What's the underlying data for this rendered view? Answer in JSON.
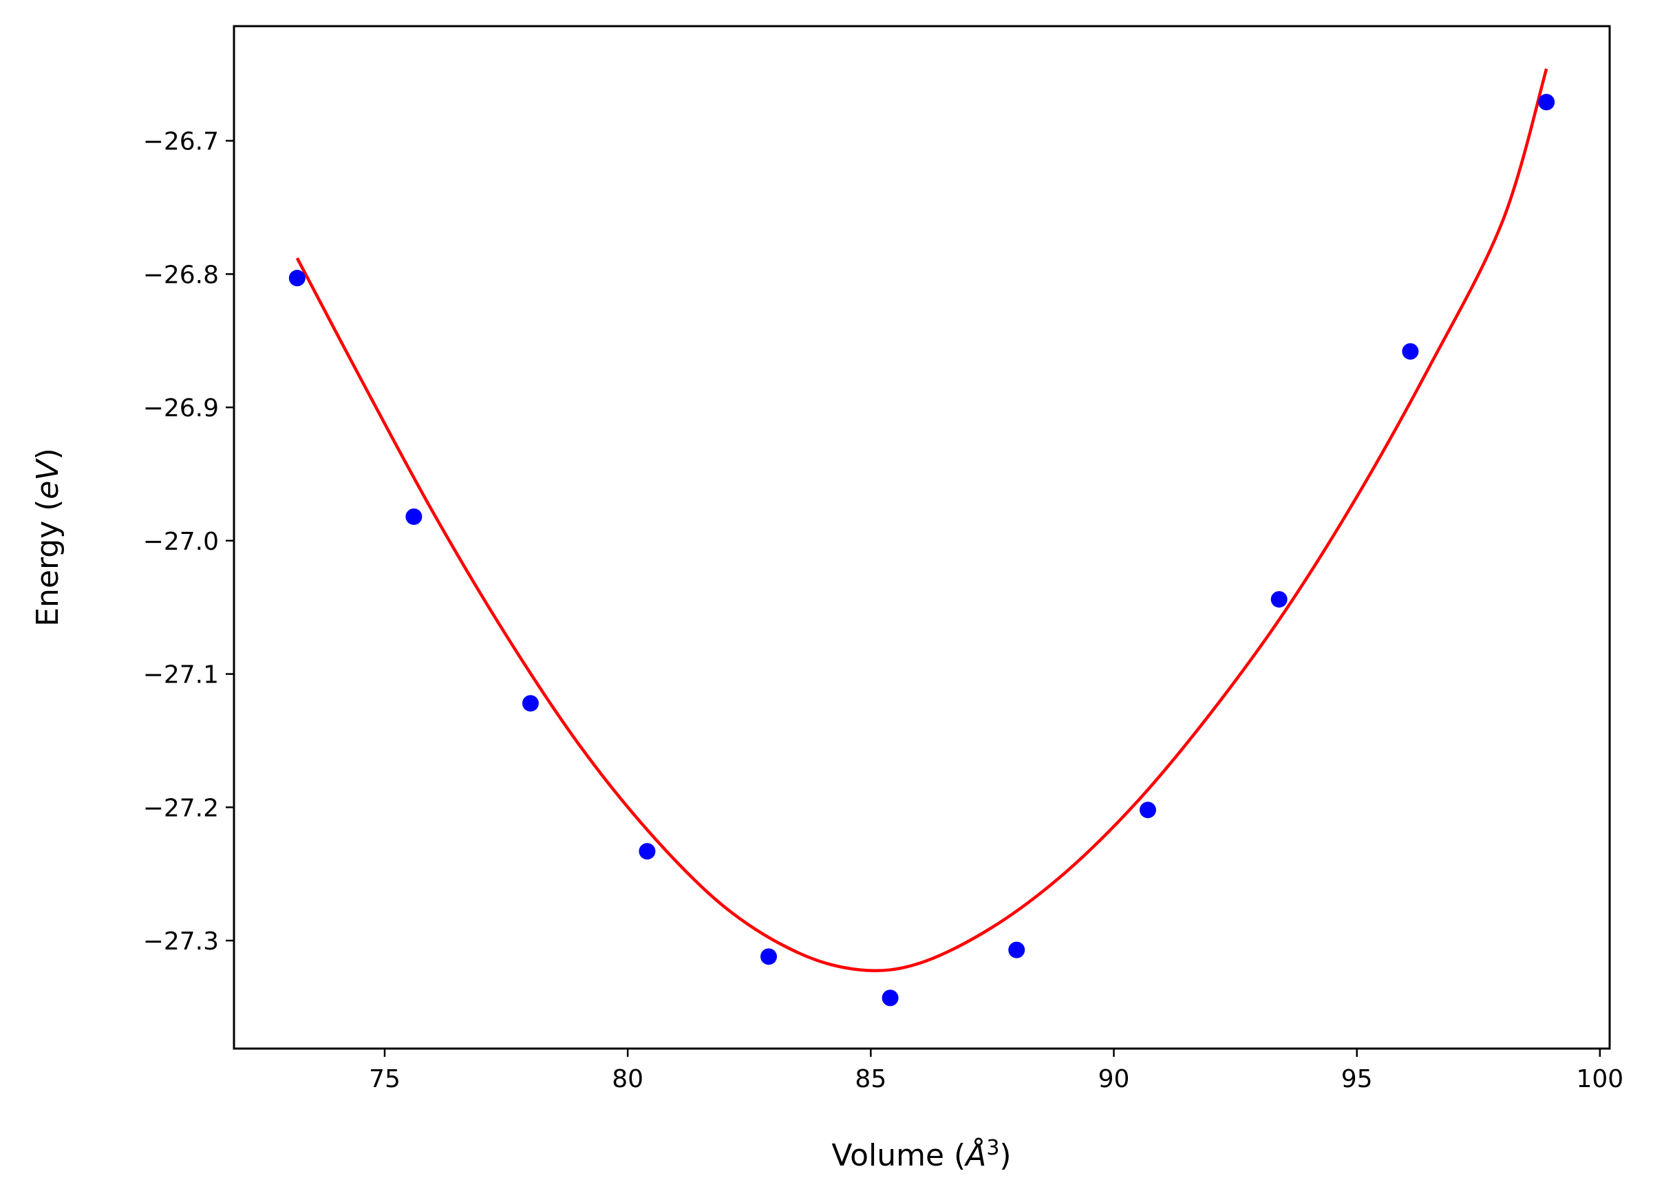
{
  "chart_data": {
    "type": "scatter",
    "xlabel": "Volume (Å³)",
    "xlabel_parts": {
      "prefix": "Volume (",
      "unit": "Å",
      "exp": "3",
      "suffix": ")"
    },
    "ylabel": "Energy (eV)",
    "ylabel_parts": {
      "prefix": "Energy (",
      "unit": "eV",
      "suffix": ")"
    },
    "xlim": [
      71.9,
      100.2
    ],
    "ylim": [
      -27.381,
      -26.614
    ],
    "xticks": [
      75,
      80,
      85,
      90,
      95,
      100
    ],
    "xtick_labels": [
      "75",
      "80",
      "85",
      "90",
      "95",
      "100"
    ],
    "yticks": [
      -27.3,
      -27.2,
      -27.1,
      -27.0,
      -26.9,
      -26.8,
      -26.7
    ],
    "ytick_labels": [
      "−27.3",
      "−27.2",
      "−27.1",
      "−27.0",
      "−26.9",
      "−26.8",
      "−26.7"
    ],
    "grid": false,
    "series": [
      {
        "kind": "points",
        "color": "#0000ff",
        "x": [
          73.2,
          75.6,
          78.0,
          80.4,
          82.9,
          85.4,
          88.0,
          90.7,
          93.4,
          96.1,
          98.9
        ],
        "y": [
          -26.803,
          -26.982,
          -27.122,
          -27.233,
          -27.312,
          -27.343,
          -27.307,
          -27.202,
          -27.044,
          -26.858,
          -26.671
        ]
      },
      {
        "kind": "fit-curve",
        "color": "#ff0000",
        "x": [
          73.2,
          74.5,
          76.0,
          77.5,
          79.0,
          80.5,
          82.0,
          83.5,
          84.8,
          86.0,
          87.5,
          89.0,
          90.5,
          92.0,
          93.5,
          95.0,
          96.5,
          98.0,
          98.9
        ],
        "y": [
          -26.788,
          -26.878,
          -26.979,
          -27.071,
          -27.153,
          -27.221,
          -27.275,
          -27.309,
          -27.322,
          -27.317,
          -27.29,
          -27.249,
          -27.195,
          -27.129,
          -27.054,
          -26.967,
          -26.869,
          -26.76,
          -26.646
        ]
      }
    ]
  }
}
